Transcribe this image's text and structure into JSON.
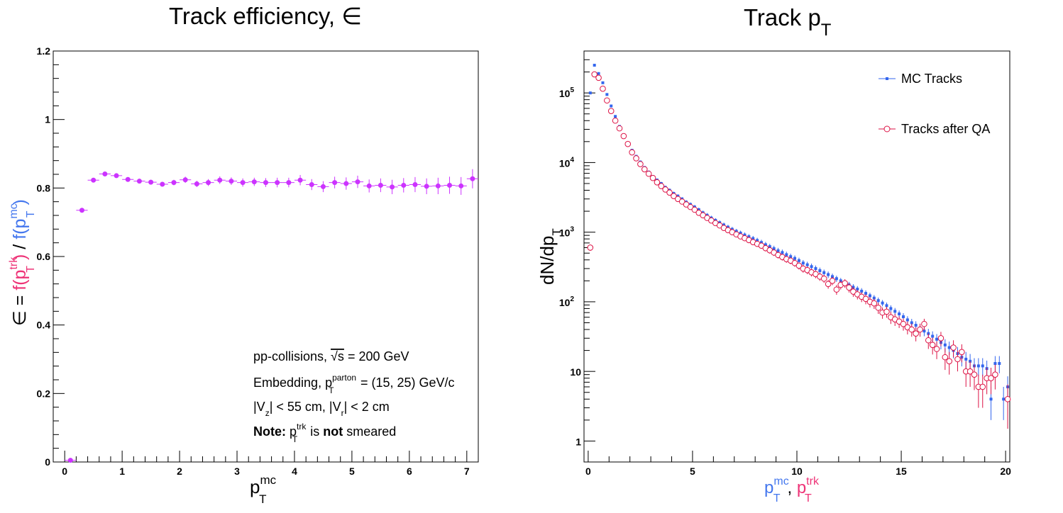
{
  "chart_data": [
    {
      "type": "scatter",
      "title": "Track efficiency, ∈",
      "xlabel_main": "p",
      "xlabel_sup": "mc",
      "xlabel_sub": "T",
      "ylabel": {
        "prefix": "∈ = ",
        "num_f": "f(p",
        "num_sub": "T",
        "num_sup": "trk",
        "num_close": ")",
        "slash": " / ",
        "den_f": "f(p",
        "den_sub": "T",
        "den_sup": "mc",
        "den_close": ")"
      },
      "xlim": [
        -0.2,
        7.2
      ],
      "ylim": [
        0,
        1.2
      ],
      "xticks": [
        "0",
        "1",
        "2",
        "3",
        "4",
        "5",
        "6",
        "7"
      ],
      "yticks": [
        "0",
        "0.2",
        "0.4",
        "0.6",
        "0.8",
        "1",
        "1.2"
      ],
      "grid": false,
      "marker_color": "#cc33ff",
      "x": [
        0.1,
        0.3,
        0.5,
        0.7,
        0.9,
        1.1,
        1.3,
        1.5,
        1.7,
        1.9,
        2.1,
        2.3,
        2.5,
        2.7,
        2.9,
        3.1,
        3.3,
        3.5,
        3.7,
        3.9,
        4.1,
        4.3,
        4.5,
        4.7,
        4.9,
        5.1,
        5.3,
        5.5,
        5.7,
        5.9,
        6.1,
        6.3,
        6.5,
        6.7,
        6.9,
        7.1
      ],
      "y": [
        0.005,
        0.735,
        0.823,
        0.841,
        0.836,
        0.825,
        0.82,
        0.817,
        0.811,
        0.816,
        0.824,
        0.812,
        0.816,
        0.823,
        0.82,
        0.816,
        0.818,
        0.816,
        0.816,
        0.816,
        0.823,
        0.81,
        0.804,
        0.816,
        0.813,
        0.818,
        0.806,
        0.808,
        0.803,
        0.808,
        0.81,
        0.805,
        0.806,
        0.808,
        0.806,
        0.827
      ],
      "yerr": [
        0.001,
        0.003,
        0.004,
        0.005,
        0.005,
        0.006,
        0.006,
        0.007,
        0.007,
        0.008,
        0.009,
        0.009,
        0.01,
        0.011,
        0.011,
        0.012,
        0.012,
        0.013,
        0.014,
        0.014,
        0.015,
        0.016,
        0.016,
        0.017,
        0.018,
        0.018,
        0.019,
        0.02,
        0.021,
        0.021,
        0.022,
        0.023,
        0.024,
        0.025,
        0.026,
        0.028
      ],
      "annotations": [
        {
          "parts": [
            {
              "t": "pp-collisions, "
            },
            {
              "t": "√s",
              "sqrt": true
            },
            {
              "t": " = 200 GeV"
            }
          ]
        },
        {
          "parts": [
            {
              "t": "Embedding, p"
            },
            {
              "t": "parton",
              "sup": true
            },
            {
              "t": "T",
              "sub": true
            },
            {
              "t": " = (15, 25) GeV/c"
            }
          ]
        },
        {
          "parts": [
            {
              "t": "|V"
            },
            {
              "t": "z",
              "sub": true
            },
            {
              "t": "| < 55 cm, |V"
            },
            {
              "t": "r",
              "sub": true
            },
            {
              "t": "| < 2 cm"
            }
          ]
        },
        {
          "parts": [
            {
              "t": "Note:",
              "bold": true
            },
            {
              "t": " p"
            },
            {
              "t": "trk",
              "sup": true
            },
            {
              "t": "T",
              "sub": true
            },
            {
              "t": " is "
            },
            {
              "t": "not",
              "bold": true
            },
            {
              "t": " smeared"
            }
          ]
        }
      ]
    },
    {
      "type": "scatter",
      "title_main": "Track p",
      "title_sub": "T",
      "ylabel_main": "dN/dp",
      "ylabel_sub": "T",
      "xlabel": {
        "p1": "p",
        "sup1": "mc",
        "sub1": "T",
        "sep": ", ",
        "p2": "p",
        "sup2": "trk",
        "sub2": "T"
      },
      "log_y": true,
      "xlim": [
        -0.2,
        20.2
      ],
      "ylim": [
        0.5,
        400000
      ],
      "xticks": [
        "0",
        "5",
        "10",
        "15",
        "20"
      ],
      "yticks": [
        {
          "v": 1,
          "label": "1"
        },
        {
          "v": 10,
          "label": "10"
        },
        {
          "v": 100,
          "label": "10",
          "exp": "2"
        },
        {
          "v": 1000,
          "label": "10",
          "exp": "3"
        },
        {
          "v": 10000,
          "label": "10",
          "exp": "4"
        },
        {
          "v": 100000,
          "label": "10",
          "exp": "5"
        }
      ],
      "grid": false,
      "legend_position": "top-right",
      "series": [
        {
          "name": "MC Tracks",
          "color": "#3366ee",
          "marker": "square",
          "x": [
            0.1,
            0.3,
            0.5,
            0.7,
            0.9,
            1.1,
            1.3,
            1.5,
            1.7,
            1.9,
            2.1,
            2.3,
            2.5,
            2.7,
            2.9,
            3.1,
            3.3,
            3.5,
            3.7,
            3.9,
            4.1,
            4.3,
            4.5,
            4.7,
            4.9,
            5.1,
            5.3,
            5.5,
            5.7,
            5.9,
            6.1,
            6.3,
            6.5,
            6.7,
            6.9,
            7.1,
            7.3,
            7.5,
            7.7,
            7.9,
            8.1,
            8.3,
            8.5,
            8.7,
            8.9,
            9.1,
            9.3,
            9.5,
            9.7,
            9.9,
            10.1,
            10.3,
            10.5,
            10.7,
            10.9,
            11.1,
            11.3,
            11.5,
            11.7,
            11.9,
            12.1,
            12.3,
            12.5,
            12.7,
            12.9,
            13.1,
            13.3,
            13.5,
            13.7,
            13.9,
            14.1,
            14.3,
            14.5,
            14.7,
            14.9,
            15.1,
            15.3,
            15.5,
            15.7,
            15.9,
            16.1,
            16.3,
            16.5,
            16.7,
            16.9,
            17.1,
            17.3,
            17.5,
            17.7,
            17.9,
            18.1,
            18.3,
            18.5,
            18.7,
            18.9,
            19.1,
            19.3,
            19.5,
            19.7,
            19.9,
            20.1
          ],
          "y": [
            100000,
            250000,
            190000,
            140000,
            95000,
            65000,
            46000,
            33000,
            25000,
            19000,
            15000,
            12300,
            10200,
            8500,
            7300,
            6300,
            5600,
            5000,
            4400,
            4000,
            3600,
            3300,
            3000,
            2700,
            2500,
            2300,
            2100,
            1900,
            1750,
            1600,
            1480,
            1370,
            1270,
            1180,
            1100,
            1030,
            970,
            910,
            860,
            810,
            760,
            710,
            660,
            620,
            580,
            540,
            510,
            475,
            445,
            420,
            390,
            360,
            340,
            320,
            300,
            280,
            262,
            246,
            230,
            215,
            200,
            186,
            175,
            162,
            152,
            142,
            132,
            122,
            113,
            104,
            96,
            88,
            80,
            73,
            67,
            61,
            55,
            50,
            46,
            42,
            38,
            35,
            32,
            29,
            26,
            24,
            22,
            20,
            18,
            16,
            15,
            14,
            12,
            12,
            12,
            11,
            4,
            13,
            13,
            4,
            6
          ],
          "yerr": [
            3000,
            7000,
            5000,
            3000,
            2000,
            1500,
            1200,
            1000,
            800,
            700,
            600,
            500,
            450,
            400,
            350,
            320,
            300,
            280,
            260,
            240,
            220,
            200,
            190,
            180,
            170,
            160,
            150,
            140,
            130,
            120,
            110,
            105,
            100,
            95,
            90,
            85,
            82,
            79,
            76,
            73,
            70,
            67,
            64,
            61,
            58,
            55,
            52,
            49,
            46,
            43,
            40,
            38,
            36,
            34,
            32,
            30,
            28,
            26,
            24,
            22,
            20,
            19,
            18,
            17,
            16,
            15,
            14,
            13,
            12,
            11,
            10,
            9.5,
            9,
            8.5,
            8,
            7.5,
            7,
            6.8,
            6.5,
            6.2,
            6,
            5.8,
            5.6,
            5.4,
            5.2,
            5,
            4.8,
            4.6,
            4.4,
            4.2,
            4,
            3.8,
            3.5,
            3.5,
            3.5,
            3.3,
            2,
            3.6,
            3.6,
            2,
            2.5
          ]
        },
        {
          "name": "Tracks after QA",
          "color": "#dd1144",
          "marker": "open-circle",
          "x": [
            0.1,
            0.3,
            0.5,
            0.7,
            0.9,
            1.1,
            1.3,
            1.5,
            1.7,
            1.9,
            2.1,
            2.3,
            2.5,
            2.7,
            2.9,
            3.1,
            3.3,
            3.5,
            3.7,
            3.9,
            4.1,
            4.3,
            4.5,
            4.7,
            4.9,
            5.1,
            5.3,
            5.5,
            5.7,
            5.9,
            6.1,
            6.3,
            6.5,
            6.7,
            6.9,
            7.1,
            7.3,
            7.5,
            7.7,
            7.9,
            8.1,
            8.3,
            8.5,
            8.7,
            8.9,
            9.1,
            9.3,
            9.5,
            9.7,
            9.9,
            10.1,
            10.3,
            10.5,
            10.7,
            10.9,
            11.1,
            11.3,
            11.5,
            11.7,
            11.9,
            12.1,
            12.3,
            12.5,
            12.7,
            12.9,
            13.1,
            13.3,
            13.5,
            13.7,
            13.9,
            14.1,
            14.3,
            14.5,
            14.7,
            14.9,
            15.1,
            15.3,
            15.5,
            15.7,
            15.9,
            16.1,
            16.3,
            16.5,
            16.7,
            16.9,
            17.1,
            17.3,
            17.5,
            17.7,
            17.9,
            18.1,
            18.3,
            18.5,
            18.7,
            18.9,
            19.1,
            19.3,
            19.5,
            20.1
          ],
          "y": [
            600,
            185000,
            165000,
            115000,
            78000,
            55000,
            40000,
            31000,
            24000,
            18500,
            14000,
            11500,
            9500,
            8000,
            6900,
            6000,
            5200,
            4600,
            4100,
            3700,
            3300,
            3000,
            2750,
            2500,
            2300,
            2100,
            1900,
            1750,
            1600,
            1470,
            1350,
            1250,
            1150,
            1070,
            1000,
            930,
            870,
            820,
            770,
            720,
            680,
            640,
            590,
            550,
            510,
            470,
            440,
            410,
            390,
            360,
            330,
            300,
            285,
            265,
            250,
            230,
            215,
            180,
            200,
            150,
            175,
            185,
            160,
            140,
            128,
            118,
            110,
            100,
            95,
            82,
            70,
            72,
            60,
            56,
            52,
            48,
            43,
            40,
            35,
            40,
            48,
            28,
            24,
            21,
            30,
            16,
            14,
            22,
            15,
            19,
            10,
            10,
            9,
            6,
            6,
            8,
            8,
            9,
            4
          ],
          "yerr": [
            60,
            5000,
            4000,
            3000,
            2000,
            1500,
            1100,
            900,
            700,
            600,
            500,
            430,
            390,
            350,
            320,
            300,
            280,
            260,
            240,
            220,
            200,
            190,
            180,
            170,
            160,
            150,
            140,
            130,
            120,
            115,
            110,
            105,
            100,
            95,
            90,
            85,
            80,
            77,
            74,
            70,
            67,
            64,
            61,
            58,
            55,
            52,
            49,
            46,
            44,
            42,
            40,
            38,
            36,
            34,
            32,
            30,
            28,
            26,
            27,
            24,
            25,
            26,
            24,
            22,
            20,
            19,
            18,
            17,
            16,
            15,
            13,
            13,
            12,
            11,
            10,
            9.5,
            9,
            8.5,
            8,
            8.5,
            9,
            7,
            6.5,
            6,
            7,
            5.5,
            5,
            6,
            5,
            5.5,
            4,
            4,
            3.6,
            3,
            3,
            3.3,
            3.3,
            3.5,
            2.5
          ]
        }
      ]
    }
  ]
}
